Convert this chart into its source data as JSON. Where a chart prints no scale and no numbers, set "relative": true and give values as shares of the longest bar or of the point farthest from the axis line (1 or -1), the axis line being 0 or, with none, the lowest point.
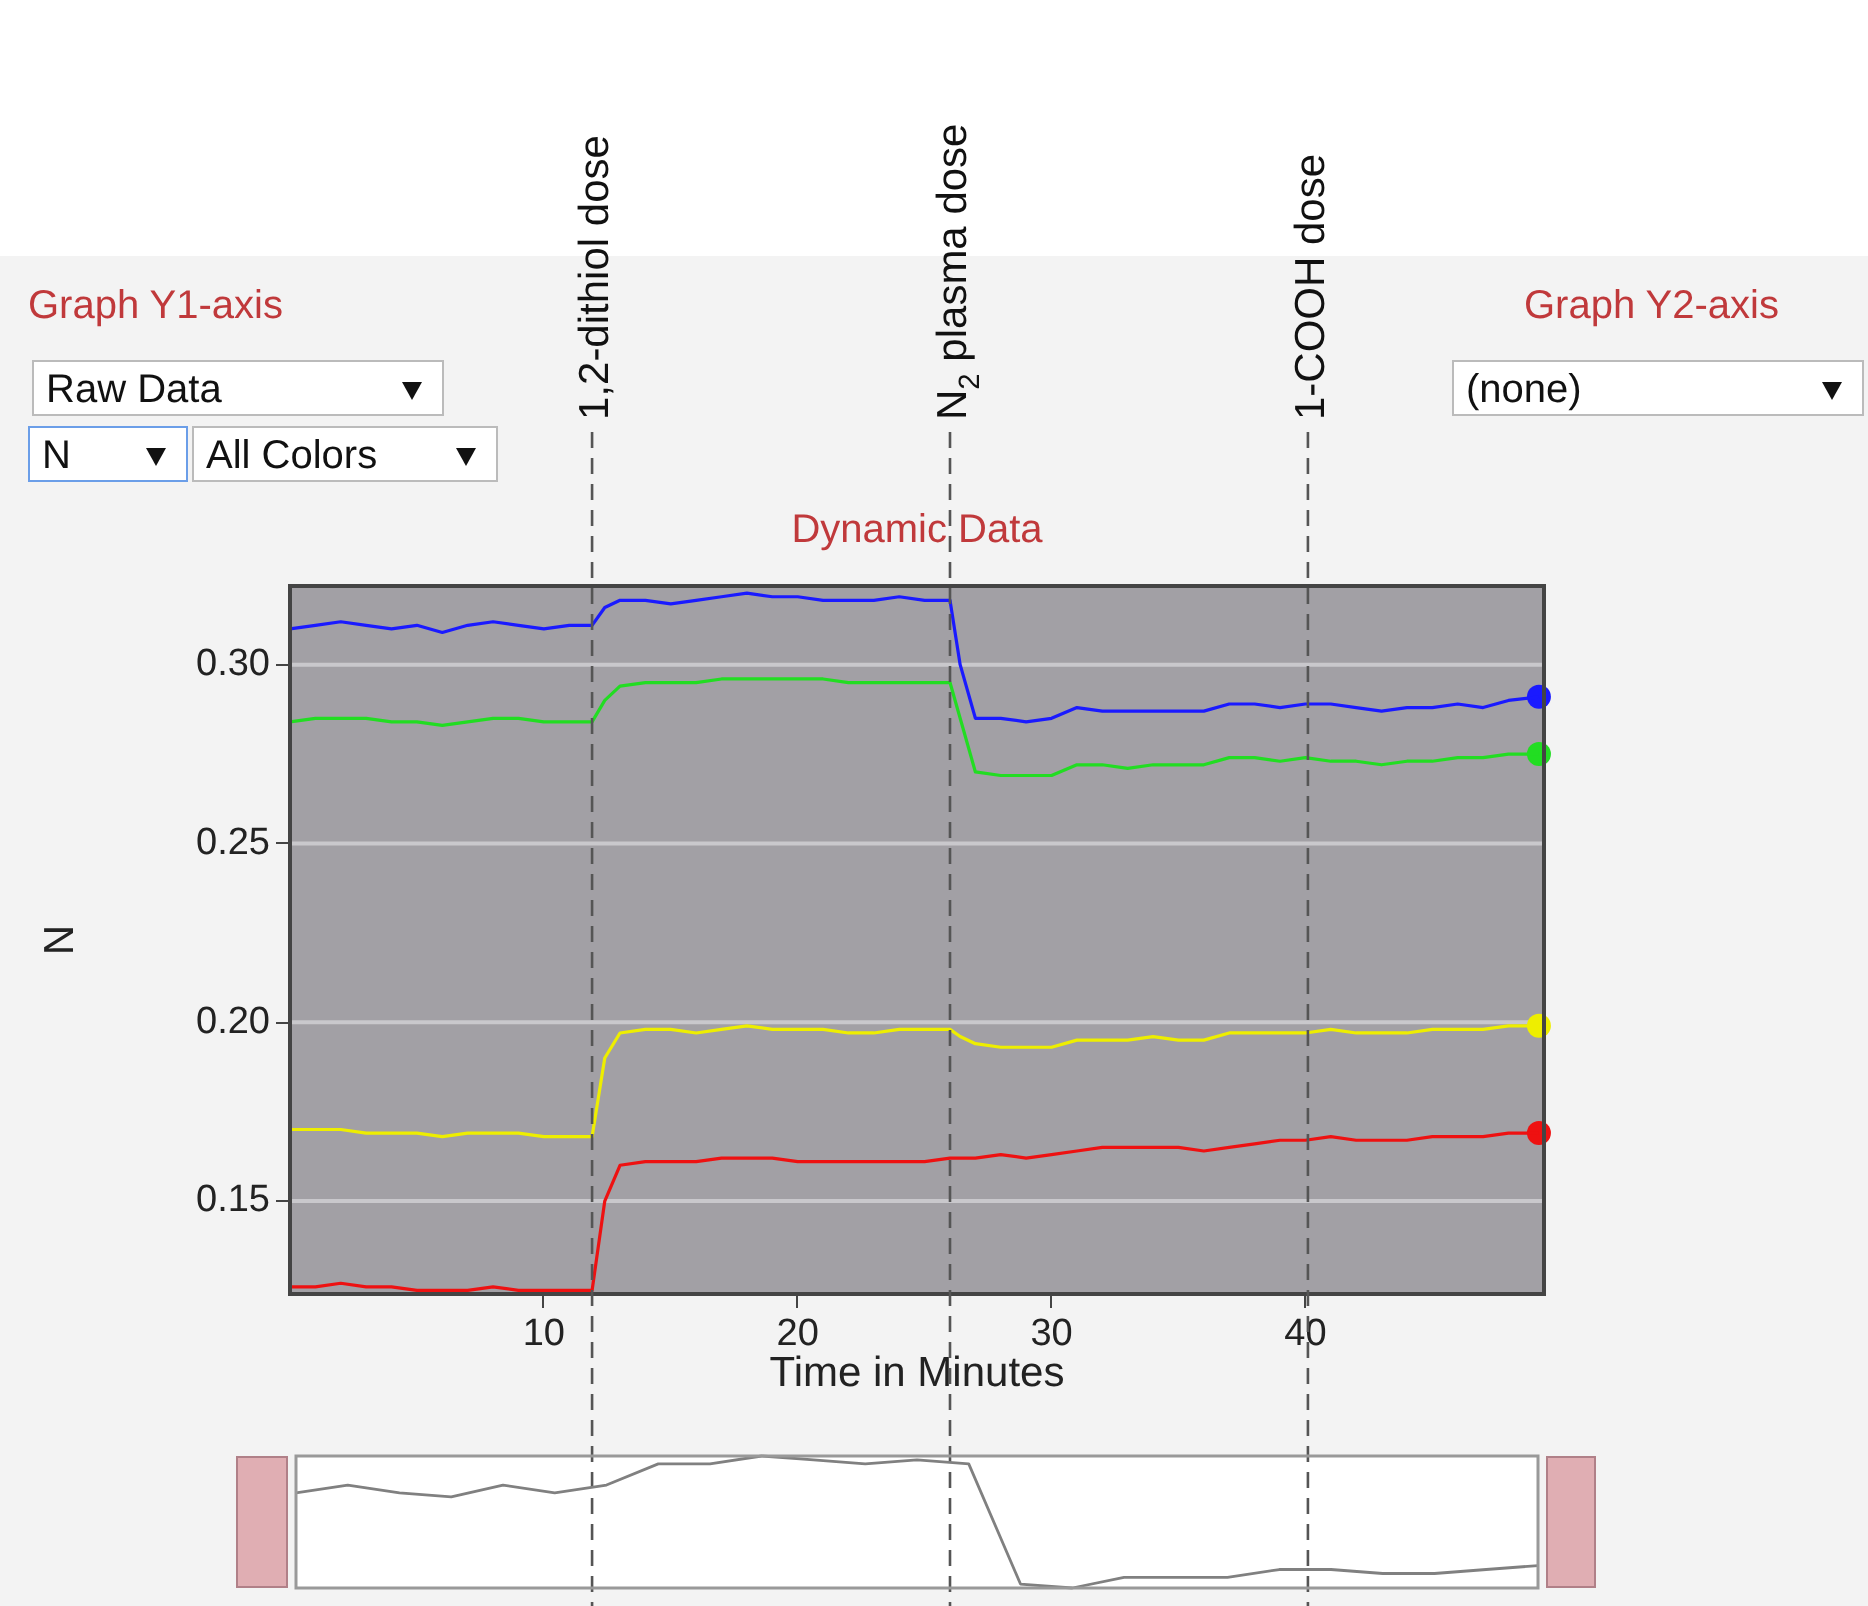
{
  "chart_data": [
    {
      "type": "line",
      "title": "Dynamic Data",
      "xlabel": "Time in Minutes",
      "ylabel": "N",
      "x": [
        0,
        1,
        2,
        3,
        4,
        5,
        6,
        7,
        8,
        9,
        10,
        11,
        11.9,
        12.4,
        13,
        14,
        15,
        16,
        17,
        18,
        19,
        20,
        21,
        22,
        23,
        24,
        25,
        26,
        26.4,
        27,
        28,
        29,
        30,
        31,
        32,
        33,
        34,
        35,
        36,
        37,
        38,
        39,
        40,
        41,
        42,
        43,
        44,
        45,
        46,
        47,
        48,
        49.2
      ],
      "series": [
        {
          "color": "#1a1aff",
          "values": [
            0.31,
            0.311,
            0.312,
            0.311,
            0.31,
            0.311,
            0.309,
            0.311,
            0.312,
            0.311,
            0.31,
            0.311,
            0.311,
            0.316,
            0.318,
            0.318,
            0.317,
            0.318,
            0.319,
            0.32,
            0.319,
            0.319,
            0.318,
            0.318,
            0.318,
            0.319,
            0.318,
            0.318,
            0.3,
            0.285,
            0.285,
            0.284,
            0.285,
            0.288,
            0.287,
            0.287,
            0.287,
            0.287,
            0.287,
            0.289,
            0.289,
            0.288,
            0.289,
            0.289,
            0.288,
            0.287,
            0.288,
            0.288,
            0.289,
            0.288,
            0.29,
            0.291
          ]
        },
        {
          "color": "#22dd22",
          "values": [
            0.284,
            0.285,
            0.285,
            0.285,
            0.284,
            0.284,
            0.283,
            0.284,
            0.285,
            0.285,
            0.284,
            0.284,
            0.284,
            0.29,
            0.294,
            0.295,
            0.295,
            0.295,
            0.296,
            0.296,
            0.296,
            0.296,
            0.296,
            0.295,
            0.295,
            0.295,
            0.295,
            0.295,
            0.285,
            0.27,
            0.269,
            0.269,
            0.269,
            0.272,
            0.272,
            0.271,
            0.272,
            0.272,
            0.272,
            0.274,
            0.274,
            0.273,
            0.274,
            0.273,
            0.273,
            0.272,
            0.273,
            0.273,
            0.274,
            0.274,
            0.275,
            0.275
          ]
        },
        {
          "color": "#eeee00",
          "values": [
            0.17,
            0.17,
            0.17,
            0.169,
            0.169,
            0.169,
            0.168,
            0.169,
            0.169,
            0.169,
            0.168,
            0.168,
            0.168,
            0.19,
            0.197,
            0.198,
            0.198,
            0.197,
            0.198,
            0.199,
            0.198,
            0.198,
            0.198,
            0.197,
            0.197,
            0.198,
            0.198,
            0.198,
            0.196,
            0.194,
            0.193,
            0.193,
            0.193,
            0.195,
            0.195,
            0.195,
            0.196,
            0.195,
            0.195,
            0.197,
            0.197,
            0.197,
            0.197,
            0.198,
            0.197,
            0.197,
            0.197,
            0.198,
            0.198,
            0.198,
            0.199,
            0.199
          ]
        },
        {
          "color": "#ee1111",
          "values": [
            0.126,
            0.126,
            0.127,
            0.126,
            0.126,
            0.125,
            0.125,
            0.125,
            0.126,
            0.125,
            0.125,
            0.125,
            0.125,
            0.15,
            0.16,
            0.161,
            0.161,
            0.161,
            0.162,
            0.162,
            0.162,
            0.161,
            0.161,
            0.161,
            0.161,
            0.161,
            0.161,
            0.162,
            0.162,
            0.162,
            0.163,
            0.162,
            0.163,
            0.164,
            0.165,
            0.165,
            0.165,
            0.165,
            0.164,
            0.165,
            0.166,
            0.167,
            0.167,
            0.168,
            0.167,
            0.167,
            0.167,
            0.168,
            0.168,
            0.168,
            0.169,
            0.169
          ]
        },
        {
          "type": "scatter",
          "color": "#1a1aff",
          "values": [
            null,
            null,
            null,
            null,
            null,
            null,
            null,
            null,
            null,
            null,
            null,
            null,
            null,
            null,
            null,
            null,
            null,
            null,
            null,
            null,
            null,
            null,
            null,
            null,
            null,
            null,
            null,
            null,
            null,
            null,
            null,
            null,
            null,
            null,
            null,
            null,
            null,
            null,
            null,
            null,
            null,
            null,
            null,
            null,
            null,
            null,
            null,
            null,
            null,
            null,
            null,
            0.291
          ]
        },
        {
          "type": "scatter",
          "color": "#22dd22",
          "values": [
            null,
            null,
            null,
            null,
            null,
            null,
            null,
            null,
            null,
            null,
            null,
            null,
            null,
            null,
            null,
            null,
            null,
            null,
            null,
            null,
            null,
            null,
            null,
            null,
            null,
            null,
            null,
            null,
            null,
            null,
            null,
            null,
            null,
            null,
            null,
            null,
            null,
            null,
            null,
            null,
            null,
            null,
            null,
            null,
            null,
            null,
            null,
            null,
            null,
            null,
            null,
            0.275
          ]
        },
        {
          "type": "scatter",
          "color": "#eeee00",
          "values": [
            null,
            null,
            null,
            null,
            null,
            null,
            null,
            null,
            null,
            null,
            null,
            null,
            null,
            null,
            null,
            null,
            null,
            null,
            null,
            null,
            null,
            null,
            null,
            null,
            null,
            null,
            null,
            null,
            null,
            null,
            null,
            null,
            null,
            null,
            null,
            null,
            null,
            null,
            null,
            null,
            null,
            null,
            null,
            null,
            null,
            null,
            null,
            null,
            null,
            null,
            null,
            0.199
          ]
        },
        {
          "type": "scatter",
          "color": "#ee1111",
          "values": [
            null,
            null,
            null,
            null,
            null,
            null,
            null,
            null,
            null,
            null,
            null,
            null,
            null,
            null,
            null,
            null,
            null,
            null,
            null,
            null,
            null,
            null,
            null,
            null,
            null,
            null,
            null,
            null,
            null,
            null,
            null,
            null,
            null,
            null,
            null,
            null,
            null,
            null,
            null,
            null,
            null,
            null,
            null,
            null,
            null,
            null,
            null,
            null,
            null,
            null,
            null,
            0.169
          ]
        }
      ],
      "xlim": [
        0,
        49.4
      ],
      "xticks": [
        10,
        20,
        30,
        40
      ],
      "ylim": [
        0.124,
        0.322
      ],
      "yticks": [
        0.15,
        {
          "value": 0.2,
          "label": "0.20"
        },
        0.25,
        {
          "value": 0.3,
          "label": "0.30"
        }
      ],
      "grid": "y",
      "legend": false,
      "ref_lines": [
        {
          "axis": "x",
          "value": 11.9,
          "label": "1,2-dithiol dose",
          "line_style": "dashed"
        },
        {
          "axis": "x",
          "value": 26.0,
          "label": "N$_{2}$ plasma dose",
          "line_style": "dashed"
        },
        {
          "axis": "x",
          "value": 40.1,
          "label": "1-COOH dose",
          "line_style": "dashed"
        }
      ],
      "annotations": [
        "Graph Y1-axis",
        "Raw Data",
        "N",
        "All Colors",
        "Graph Y2-axis",
        "(none)"
      ]
    },
    {
      "type": "line",
      "relative": true,
      "legend": false,
      "categories": [
        null,
        null,
        null,
        null,
        null,
        null,
        null,
        null,
        null,
        null,
        null,
        null,
        null,
        null,
        null,
        null,
        null,
        null,
        null,
        null,
        null,
        null,
        null,
        null,
        null
      ],
      "series": [
        {
          "color": "#808080",
          "values": [
            0.72,
            0.78,
            0.72,
            0.69,
            0.78,
            0.72,
            0.78,
            0.94,
            0.94,
            1,
            0.97,
            0.94,
            0.97,
            0.94,
            0.03,
            0,
            0.08,
            0.08,
            0.08,
            0.14,
            0.14,
            0.11,
            0.11,
            0.14,
            0.17
          ]
        }
      ]
    }
  ]
}
